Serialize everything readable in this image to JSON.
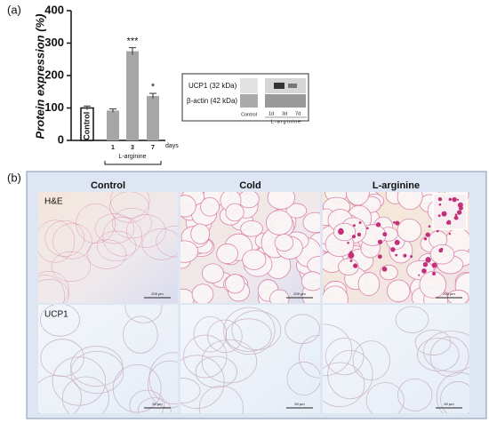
{
  "panel_labels": [
    "(a)",
    "(b)"
  ],
  "chart_data": {
    "type": "bar",
    "ylabel": "Protein expression (%)",
    "categories": [
      "Control",
      "1",
      "3",
      "7"
    ],
    "values": [
      100,
      92,
      275,
      137
    ],
    "errors": [
      6,
      5,
      11,
      8
    ],
    "significance": [
      null,
      null,
      "***",
      "*"
    ],
    "colors": [
      "#ffffff",
      "#a6a6a6",
      "#a6a6a6",
      "#a6a6a6"
    ],
    "x_unit_label": "days",
    "group_label": "L-arginine",
    "ylim": [
      0,
      400
    ],
    "yticks": [
      0,
      100,
      200,
      300,
      400
    ]
  },
  "blot": {
    "rows": [
      "UCP1 (32 kDa)",
      "β-actin (42 kDa)"
    ],
    "lanes": [
      "Control",
      "1d",
      "3d",
      "7d"
    ],
    "group_label": "L-arginine"
  },
  "micrographs": {
    "columns": [
      "Control",
      "Cold",
      "L-arginine"
    ],
    "rows": [
      "H&E",
      "UCP1"
    ],
    "scale_bars": [
      [
        "200 µm",
        "200 µm",
        "200 µm"
      ],
      [
        "50 µm",
        "50 µm",
        "50 µm"
      ]
    ]
  }
}
